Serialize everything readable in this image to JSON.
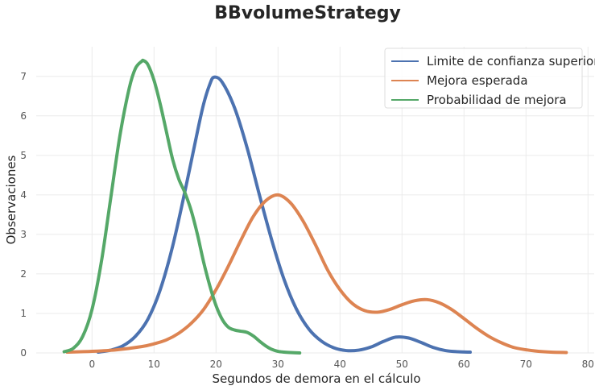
{
  "chart_data": {
    "type": "area",
    "title": "BBvolumeStrategy",
    "xlabel": "Segundos de demora en el cálculo",
    "ylabel": "Observaciones",
    "xlim": [
      -9,
      81
    ],
    "ylim": [
      0,
      7.75
    ],
    "xticks": [
      0,
      10,
      20,
      30,
      40,
      50,
      60,
      70,
      80
    ],
    "yticks": [
      0,
      1,
      2,
      3,
      4,
      5,
      6,
      7
    ],
    "grid": true,
    "legend_position": "top-right",
    "series": [
      {
        "name": "Limite de confianza superior",
        "color": "#4c72b0",
        "x": [
          1,
          3,
          5,
          7,
          9,
          11,
          13,
          15,
          17,
          18,
          19,
          19.7,
          21,
          23,
          25,
          27,
          29,
          31,
          33,
          35,
          37,
          39,
          41,
          43,
          45,
          47,
          49,
          51,
          53,
          55,
          57,
          59,
          61
        ],
        "y": [
          0.02,
          0.07,
          0.18,
          0.42,
          0.85,
          1.6,
          2.7,
          4.1,
          5.6,
          6.3,
          6.8,
          6.98,
          6.85,
          6.2,
          5.2,
          4.0,
          2.85,
          1.85,
          1.1,
          0.6,
          0.3,
          0.13,
          0.06,
          0.07,
          0.15,
          0.29,
          0.4,
          0.38,
          0.27,
          0.14,
          0.06,
          0.03,
          0.02
        ]
      },
      {
        "name": "Mejora esperada",
        "color": "#dd8452",
        "x": [
          -4,
          0,
          4,
          8,
          10,
          12,
          14,
          16,
          18,
          20,
          22,
          24,
          26,
          28,
          30,
          32,
          34,
          36,
          38,
          40,
          42,
          44,
          46,
          48,
          50,
          52,
          54,
          56,
          58,
          60,
          62,
          64,
          66,
          68,
          70,
          72,
          74,
          76.5
        ],
        "y": [
          0.02,
          0.04,
          0.08,
          0.16,
          0.23,
          0.33,
          0.5,
          0.75,
          1.1,
          1.6,
          2.2,
          2.85,
          3.45,
          3.85,
          4.0,
          3.8,
          3.35,
          2.75,
          2.1,
          1.6,
          1.25,
          1.07,
          1.03,
          1.1,
          1.22,
          1.32,
          1.35,
          1.27,
          1.1,
          0.87,
          0.63,
          0.42,
          0.26,
          0.14,
          0.08,
          0.04,
          0.02,
          0.01
        ]
      },
      {
        "name": "Probabilidad de mejora",
        "color": "#55a868",
        "x": [
          -4.5,
          -3,
          -1.5,
          0,
          1.5,
          3,
          4.5,
          6,
          7,
          8,
          8.3,
          9,
          10,
          11,
          12,
          13,
          14,
          15,
          16,
          17,
          18,
          19,
          20,
          21,
          22,
          23,
          24,
          25,
          26,
          27,
          28,
          29,
          30,
          31,
          32,
          33.5
        ],
        "y": [
          0.03,
          0.12,
          0.42,
          1.1,
          2.3,
          3.9,
          5.5,
          6.7,
          7.2,
          7.38,
          7.4,
          7.3,
          6.9,
          6.3,
          5.6,
          4.9,
          4.4,
          4.05,
          3.6,
          3.0,
          2.3,
          1.7,
          1.2,
          0.85,
          0.65,
          0.58,
          0.55,
          0.52,
          0.43,
          0.3,
          0.18,
          0.09,
          0.04,
          0.02,
          0.01,
          0.0
        ]
      }
    ]
  }
}
